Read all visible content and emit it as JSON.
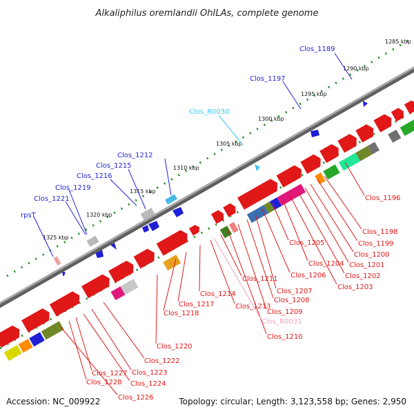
{
  "title": "Alkaliphilus oremlandii OhILAs, complete genome",
  "footer": {
    "accession": "Accession: NC_009922",
    "summary": "Topology: circular; Length: 3,123,558 bp; Genes: 2,950"
  },
  "colors": {
    "backbone": "#8c8c8c",
    "forward_gene": "#1f1fd6",
    "reverse_gene": "#e01818",
    "trna": "#3cc8f0",
    "ticks": "#1e8a1e",
    "pseudo": "#f0a0c8"
  },
  "scale_labels": [
    "1285 kbp",
    "1290 kbp",
    "1295 kbp",
    "1300 kbp",
    "1305 kbp",
    "1310 kbp",
    "1315 kbp",
    "1320 kbp",
    "1325 kbp"
  ],
  "forward_labels": [
    "Clos_1189",
    "Clos_1197",
    "Clos_R0030",
    "Clos_1212",
    "Clos_1215",
    "Clos_1216",
    "Clos_1219",
    "Clos_1221",
    "rpsT"
  ],
  "reverse_labels": [
    "Clos_1196",
    "Clos_1198",
    "Clos_1199",
    "Clos_1200",
    "Clos_1201",
    "Clos_1202",
    "Clos_1203",
    "Clos_1204",
    "Clos_1205",
    "Clos_1206",
    "Clos_1207",
    "Clos_1208",
    "Clos_1209",
    "Clos_1210",
    "Clos_R0031",
    "Clos_1211",
    "Clos_1213",
    "Clos_1214",
    "Clos_1217",
    "Clos_1218",
    "Clos_1220",
    "Clos_1222",
    "Clos_1223",
    "Clos_1224",
    "Clos_1226",
    "Clos_1227",
    "Clos_1228"
  ]
}
